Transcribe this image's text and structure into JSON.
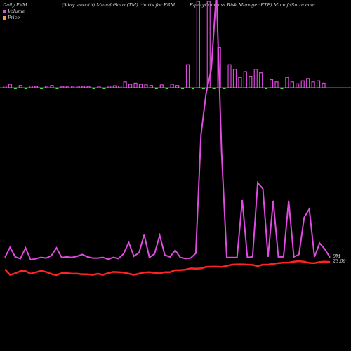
{
  "header": {
    "left": "Daily PVM",
    "middle": "(5day smooth) MunafaSutra(TM) charts for ERM",
    "right": "EquityCompass Risk Manager ETF) MunafaSutra.com"
  },
  "legend": [
    {
      "label": "Volume",
      "color": "#e14be1"
    },
    {
      "label": "Price",
      "color": "#ff9933"
    }
  ],
  "last": {
    "volume_label": "0M",
    "price_label": "23.09"
  },
  "colors": {
    "volume": "#e14be1",
    "price": "#ff2222",
    "up_bar": "#d84ad8",
    "down_bar": "#55dd55",
    "axis": "#aaaaaa"
  },
  "chart_data": {
    "type": "line",
    "title": "",
    "xlabel": "",
    "ylabel": "",
    "grid": false,
    "legend_position": "top-left",
    "series": [
      {
        "name": "Volume",
        "values": [
          2.5,
          4.2,
          2.6,
          2.3,
          4.1,
          2.1,
          2.3,
          2.5,
          2.4,
          2.8,
          4.1,
          2.5,
          2.6,
          2.5,
          2.7,
          3.0,
          2.6,
          2.4,
          2.4,
          2.5,
          2.2,
          2.5,
          2.3,
          3.1,
          5.0,
          2.7,
          3.3,
          6.3,
          2.5,
          3.1,
          6.2,
          2.9,
          2.6,
          3.7,
          2.5,
          2.3,
          2.4,
          3.2,
          23.0,
          30.0,
          34.0,
          47.0,
          20.0,
          2.5,
          2.5,
          2.5,
          12.1,
          2.5,
          2.6,
          15.0,
          14.0,
          2.6,
          12.0,
          2.6,
          2.6,
          12.0,
          2.6,
          3.0,
          9.2,
          10.6,
          2.6,
          4.9,
          3.9,
          2.5
        ]
      },
      {
        "name": "Price",
        "values": [
          23.0,
          22.05,
          22.3,
          22.7,
          22.7,
          22.25,
          22.5,
          22.75,
          22.55,
          22.2,
          22.0,
          22.35,
          22.35,
          22.25,
          22.25,
          22.15,
          22.15,
          22.05,
          22.25,
          22.05,
          22.35,
          22.55,
          22.5,
          22.45,
          22.25,
          22.05,
          22.25,
          22.45,
          22.5,
          22.4,
          22.3,
          22.5,
          22.5,
          22.85,
          22.85,
          22.95,
          23.15,
          23.1,
          23.15,
          23.4,
          23.45,
          23.45,
          23.4,
          23.6,
          23.8,
          23.85,
          23.85,
          23.8,
          23.75,
          23.55,
          23.8,
          23.8,
          23.95,
          24.05,
          24.15,
          24.15,
          24.3,
          24.4,
          24.3,
          24.1,
          24.05,
          24.25,
          24.3,
          24.25
        ]
      }
    ],
    "pvm_bars": [
      {
        "dir": "up",
        "value": 3.0
      },
      {
        "dir": "up",
        "value": 6.0
      },
      {
        "dir": "down",
        "value": 2.0
      },
      {
        "dir": "up",
        "value": 4.0
      },
      {
        "dir": "down",
        "value": 2.0
      },
      {
        "dir": "up",
        "value": 3.0
      },
      {
        "dir": "up",
        "value": 2.0
      },
      {
        "dir": "down",
        "value": 2.0
      },
      {
        "dir": "up",
        "value": 2.5
      },
      {
        "dir": "up",
        "value": 4.0
      },
      {
        "dir": "down",
        "value": 2.0
      },
      {
        "dir": "up",
        "value": 2.0
      },
      {
        "dir": "up",
        "value": 2.0
      },
      {
        "dir": "up",
        "value": 2.5
      },
      {
        "dir": "up",
        "value": 2.0
      },
      {
        "dir": "up",
        "value": 2.5
      },
      {
        "dir": "up",
        "value": 2.0
      },
      {
        "dir": "down",
        "value": 2.0
      },
      {
        "dir": "up",
        "value": 2.0
      },
      {
        "dir": "down",
        "value": 2.0
      },
      {
        "dir": "up",
        "value": 3.0
      },
      {
        "dir": "up",
        "value": 3.5
      },
      {
        "dir": "up",
        "value": 3.0
      },
      {
        "dir": "up",
        "value": 10.0
      },
      {
        "dir": "up",
        "value": 6.0
      },
      {
        "dir": "up",
        "value": 8.0
      },
      {
        "dir": "up",
        "value": 6.0
      },
      {
        "dir": "up",
        "value": 5.0
      },
      {
        "dir": "up",
        "value": 4.0
      },
      {
        "dir": "down",
        "value": 2.0
      },
      {
        "dir": "up",
        "value": 5.0
      },
      {
        "dir": "down",
        "value": 2.0
      },
      {
        "dir": "up",
        "value": 6.0
      },
      {
        "dir": "up",
        "value": 4.0
      },
      {
        "dir": "down",
        "value": 2.0
      },
      {
        "dir": "up",
        "value": 40.0
      },
      {
        "dir": "down",
        "value": 2.0
      },
      {
        "dir": "up",
        "value": 150.0
      },
      {
        "dir": "down",
        "value": 2.0
      },
      {
        "dir": "up",
        "value": 150.0
      },
      {
        "dir": "down",
        "value": 2.0
      },
      {
        "dir": "up",
        "value": 70.0
      },
      {
        "dir": "down",
        "value": 2.0
      },
      {
        "dir": "up",
        "value": 40.0
      },
      {
        "dir": "up",
        "value": 32.0
      },
      {
        "dir": "up",
        "value": 18.0
      },
      {
        "dir": "up",
        "value": 28.0
      },
      {
        "dir": "up",
        "value": 20.0
      },
      {
        "dir": "up",
        "value": 32.0
      },
      {
        "dir": "up",
        "value": 26.0
      },
      {
        "dir": "down",
        "value": 2.0
      },
      {
        "dir": "up",
        "value": 14.0
      },
      {
        "dir": "up",
        "value": 10.0
      },
      {
        "dir": "down",
        "value": 2.0
      },
      {
        "dir": "up",
        "value": 18.0
      },
      {
        "dir": "up",
        "value": 10.0
      },
      {
        "dir": "up",
        "value": 7.0
      },
      {
        "dir": "up",
        "value": 12.0
      },
      {
        "dir": "up",
        "value": 16.0
      },
      {
        "dir": "up",
        "value": 10.0
      },
      {
        "dir": "up",
        "value": 12.0
      },
      {
        "dir": "up",
        "value": 8.0
      }
    ]
  }
}
